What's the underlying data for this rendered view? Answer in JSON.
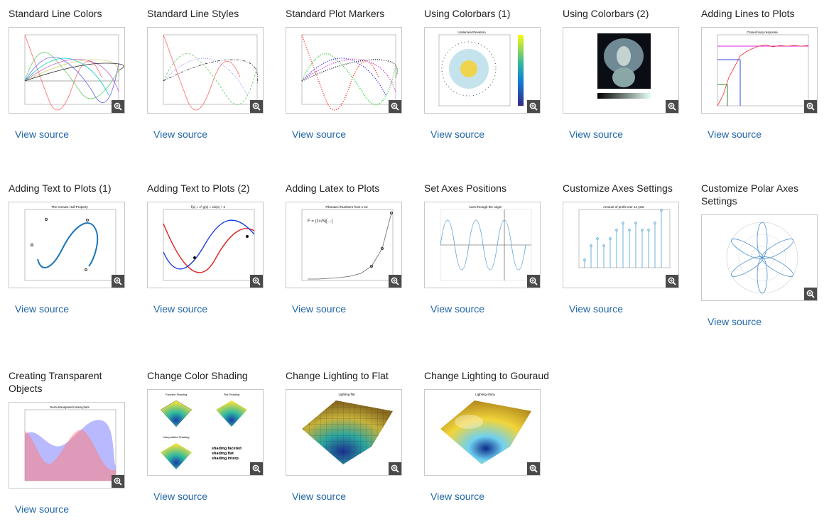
{
  "view_source_label": "View source",
  "zoom_icon": "zoom-in-icon",
  "cards": [
    {
      "id": "line-colors",
      "title": "Standard Line Colors"
    },
    {
      "id": "line-styles",
      "title": "Standard Line Styles"
    },
    {
      "id": "plot-markers",
      "title": "Standard Plot Markers"
    },
    {
      "id": "colorbars-1",
      "title": "Using Colorbars (1)"
    },
    {
      "id": "colorbars-2",
      "title": "Using Colorbars (2)"
    },
    {
      "id": "adding-lines",
      "title": "Adding Lines to Plots"
    },
    {
      "id": "text-1",
      "title": "Adding Text to Plots (1)"
    },
    {
      "id": "text-2",
      "title": "Adding Text to Plots (2)"
    },
    {
      "id": "latex",
      "title": "Adding Latex to Plots"
    },
    {
      "id": "axes-positions",
      "title": "Set Axes Positions"
    },
    {
      "id": "axes-settings",
      "title": "Customize Axes Settings"
    },
    {
      "id": "polar-axes",
      "title": "Customize Polar Axes Settings"
    },
    {
      "id": "transparent",
      "title": "Creating Transparent Objects"
    },
    {
      "id": "color-shading",
      "title": "Change Color Shading"
    },
    {
      "id": "lighting-flat",
      "title": "Change Lighting to Flat"
    },
    {
      "id": "lighting-gouraud",
      "title": "Change Lighting to Gouraud"
    }
  ],
  "thumb_text": {
    "colorbars1_title": "Undersea Elevation",
    "lines_title": "Closed loop response",
    "text1_title": "The Convex Hull Property",
    "text2_title": "f(x) = x²    g(x) = sin(x) + 2",
    "latex_title": "Fibonacci Numbers from 1-12",
    "axes_pos_title": "Axes through the origin",
    "axes_settings_title": "Amount of profit over 14 year",
    "transparent_title": "Semi-transparent area plots",
    "shading_faceted": "Faceted Shading",
    "shading_flat": "Flat Shading",
    "shading_interp": "Interpolated Shading",
    "shading_code": [
      "shading faceted",
      "shading flat",
      "shading interp"
    ],
    "lighting_flat_title": "Lighting flat",
    "lighting_shiny_title": "Lighting shiny"
  }
}
